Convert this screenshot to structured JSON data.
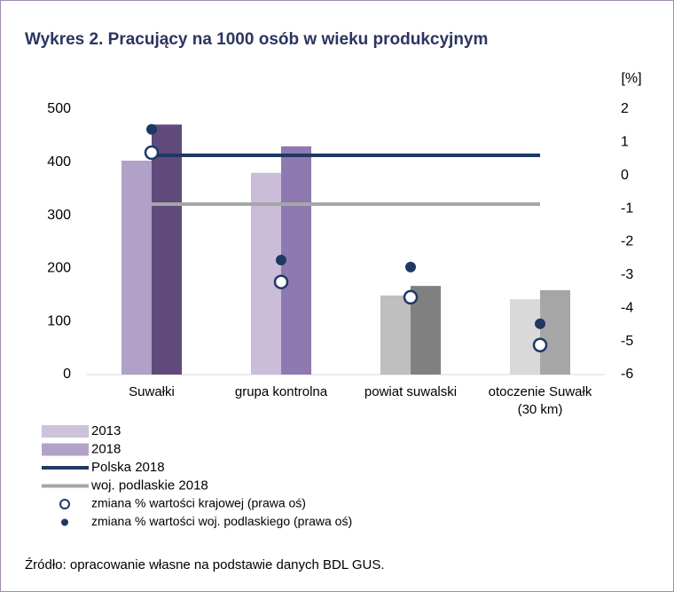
{
  "chart_data": {
    "type": "bar",
    "title": "Wykres 2. Pracujący na 1000 osób w wieku produkcyjnym",
    "categories": [
      "Suwałki",
      "grupa kontrolna",
      "powiat suwalski",
      "otoczenie Suwałk\n(30 km)"
    ],
    "ylim": [
      0,
      500
    ],
    "yticks": [
      0,
      100,
      200,
      300,
      400,
      500
    ],
    "y2label": "[%]",
    "y2lim": [
      -6,
      2
    ],
    "y2ticks": [
      -6,
      -5,
      -4,
      -3,
      -2,
      -1,
      0,
      1,
      2
    ],
    "grid": false,
    "series": [
      {
        "name": "2013",
        "color": "#ccc3d8",
        "colors": [
          "#b1a0c7",
          "#c9bdd9",
          "#bfbfbf",
          "#d9d9d9"
        ],
        "values": [
          403,
          380,
          149,
          142
        ]
      },
      {
        "name": "2018",
        "color": "#b3a2c7",
        "colors": [
          "#604a7b",
          "#8e79b0",
          "#808080",
          "#a6a6a6"
        ],
        "values": [
          471,
          430,
          167,
          159
        ]
      }
    ],
    "lines": [
      {
        "name": "Polska 2018",
        "color": "#1f3864",
        "value": 413
      },
      {
        "name": "woj. podlaskie 2018",
        "color": "#a6a6a6",
        "value": 321
      }
    ],
    "points": [
      {
        "name": "zmiana % wartości krajowej (prawa oś)",
        "color": "#1f3864",
        "marker": "open",
        "axis": "y2",
        "values": [
          0.69,
          -3.21,
          -3.67,
          -5.11
        ]
      },
      {
        "name": "zmiana % wartości woj. podlaskiego (prawa oś)",
        "color": "#1f3864",
        "marker": "filled",
        "axis": "y2",
        "values": [
          1.39,
          -2.55,
          -2.76,
          -4.47
        ]
      }
    ],
    "source": "Źródło: opracowanie własne na podstawie danych BDL GUS."
  }
}
